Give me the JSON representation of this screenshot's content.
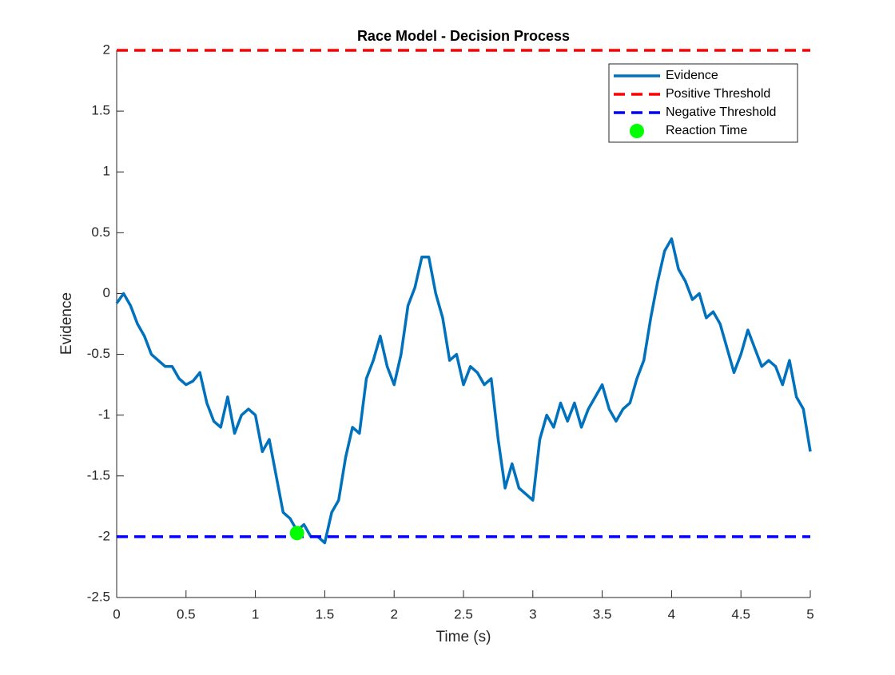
{
  "chart_data": {
    "type": "line",
    "title": "Race Model - Decision Process",
    "x_label": "Time (s)",
    "y_label": "Evidence",
    "x": [
      0,
      0.05,
      0.1,
      0.15,
      0.2,
      0.25,
      0.3,
      0.35,
      0.4,
      0.45,
      0.5,
      0.55,
      0.6,
      0.65,
      0.7,
      0.75,
      0.8,
      0.85,
      0.9,
      0.95,
      1,
      1.05,
      1.1,
      1.15,
      1.2,
      1.25,
      1.3,
      1.35,
      1.4,
      1.45,
      1.5,
      1.55,
      1.6,
      1.65,
      1.7,
      1.75,
      1.8,
      1.85,
      1.9,
      1.95,
      2,
      2.05,
      2.1,
      2.15,
      2.2,
      2.25,
      2.3,
      2.35,
      2.4,
      2.45,
      2.5,
      2.55,
      2.6,
      2.65,
      2.7,
      2.75,
      2.8,
      2.85,
      2.9,
      2.95,
      3,
      3.05,
      3.1,
      3.15,
      3.2,
      3.25,
      3.3,
      3.35,
      3.4,
      3.45,
      3.5,
      3.55,
      3.6,
      3.65,
      3.7,
      3.75,
      3.8,
      3.85,
      3.9,
      3.95,
      4,
      4.05,
      4.1,
      4.15,
      4.2,
      4.25,
      4.3,
      4.35,
      4.4,
      4.45,
      4.5,
      4.55,
      4.6,
      4.65,
      4.7,
      4.75,
      4.8,
      4.85,
      4.9,
      4.95,
      5
    ],
    "series": [
      {
        "name": "Evidence",
        "color": "#0072bd",
        "values": [
          -0.08,
          0,
          -0.1,
          -0.25,
          -0.35,
          -0.5,
          -0.55,
          -0.6,
          -0.6,
          -0.7,
          -0.75,
          -0.72,
          -0.65,
          -0.9,
          -1.05,
          -1.1,
          -0.85,
          -1.15,
          -1,
          -0.95,
          -1,
          -1.3,
          -1.2,
          -1.5,
          -1.8,
          -1.85,
          -1.95,
          -1.9,
          -2,
          -2,
          -2.05,
          -1.8,
          -1.7,
          -1.35,
          -1.1,
          -1.15,
          -0.7,
          -0.55,
          -0.35,
          -0.6,
          -0.75,
          -0.5,
          -0.1,
          0.05,
          0.3,
          0.3,
          0,
          -0.2,
          -0.55,
          -0.5,
          -0.75,
          -0.6,
          -0.65,
          -0.75,
          -0.7,
          -1.2,
          -1.6,
          -1.4,
          -1.6,
          -1.65,
          -1.7,
          -1.2,
          -1,
          -1.1,
          -0.9,
          -1.05,
          -0.9,
          -1.1,
          -0.95,
          -0.85,
          -0.75,
          -0.95,
          -1.05,
          -0.95,
          -0.9,
          -0.7,
          -0.55,
          -0.2,
          0.1,
          0.35,
          0.45,
          0.2,
          0.1,
          -0.05,
          0,
          -0.2,
          -0.15,
          -0.25,
          -0.45,
          -0.65,
          -0.5,
          -0.3,
          -0.45,
          -0.6,
          -0.55,
          -0.6,
          -0.75,
          -0.55,
          -0.85,
          -0.95,
          -1.3
        ]
      }
    ],
    "hlines": [
      {
        "name": "Positive Threshold",
        "color": "#ff0000",
        "value": 2
      },
      {
        "name": "Negative Threshold",
        "color": "#0000ff",
        "value": -2
      }
    ],
    "points": [
      {
        "name": "Reaction Time",
        "color": "#00ff00",
        "x": 1.3,
        "y": -1.97
      }
    ],
    "xlim": [
      0,
      5
    ],
    "xticks": [
      0,
      0.5,
      1,
      1.5,
      2,
      2.5,
      3,
      3.5,
      4,
      4.5,
      5
    ],
    "ylim": [
      -2.5,
      2
    ],
    "yticks": [
      -2.5,
      -2,
      -1.5,
      -1,
      -0.5,
      0,
      0.5,
      1,
      1.5,
      2
    ],
    "grid": false,
    "legend": "northeast"
  }
}
